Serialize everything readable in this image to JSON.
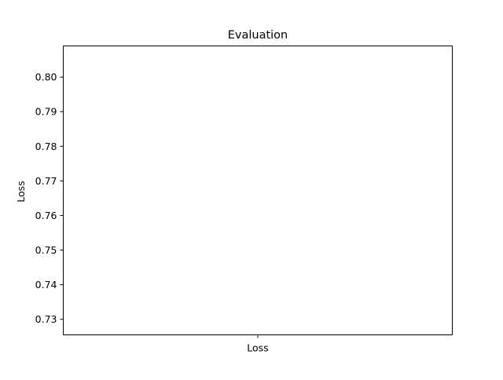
{
  "chart_data": {
    "type": "bar",
    "title": "Evaluation",
    "xlabel": "",
    "ylabel": "Loss",
    "categories": [
      "Loss"
    ],
    "series": [],
    "ylim": [
      0.7255,
      0.809
    ],
    "y_ticks": [
      0.73,
      0.74,
      0.75,
      0.76,
      0.77,
      0.78,
      0.79,
      0.8
    ],
    "y_tick_labels": [
      "0.73",
      "0.74",
      "0.75",
      "0.76",
      "0.77",
      "0.78",
      "0.79",
      "0.80"
    ],
    "grid": false,
    "legend": "none"
  }
}
